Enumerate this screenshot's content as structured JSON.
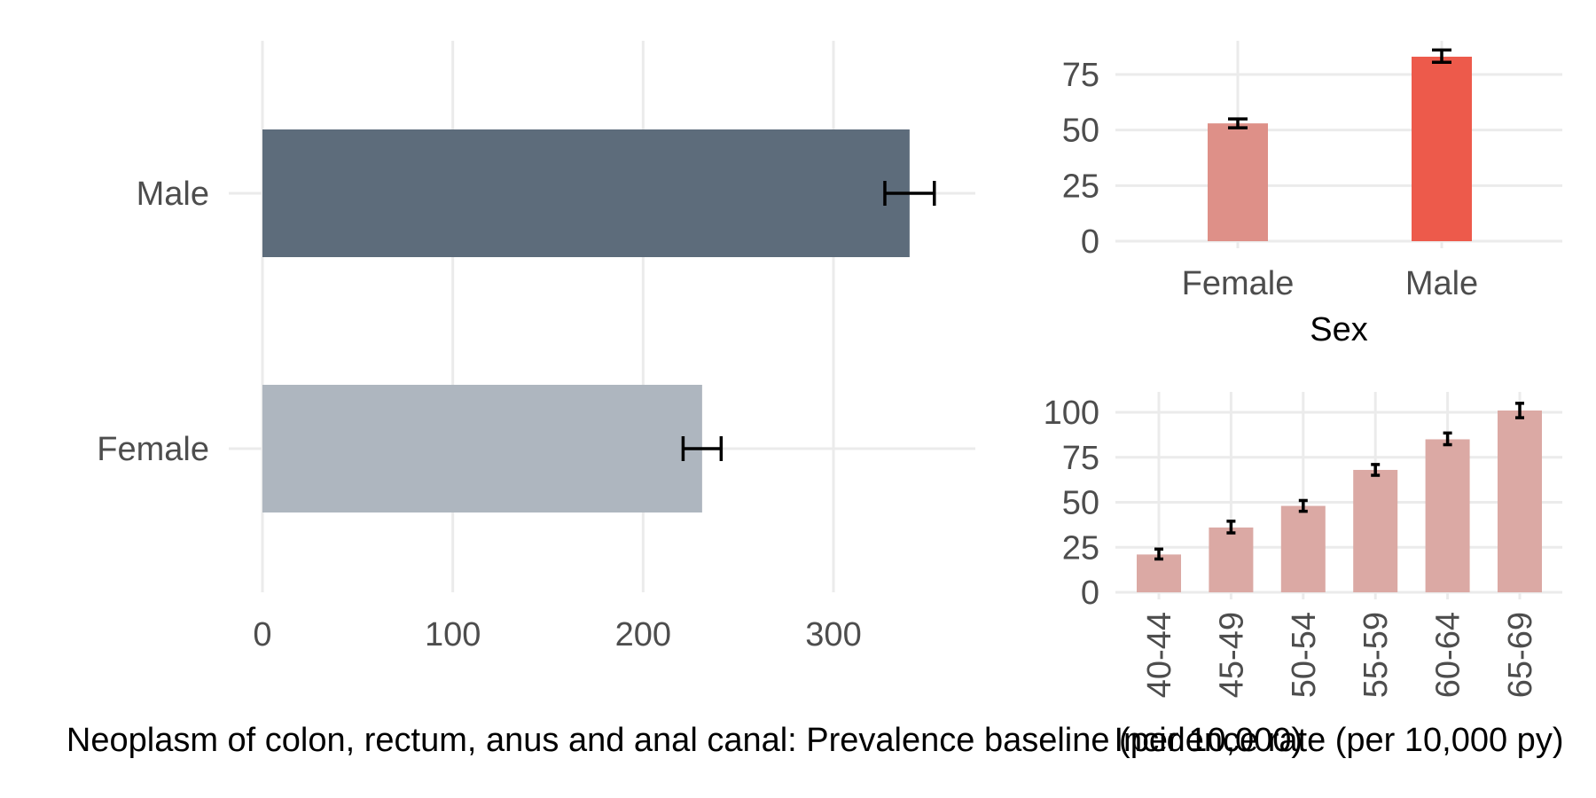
{
  "chart_data": [
    {
      "type": "bar",
      "orientation": "horizontal",
      "categories": [
        "Male",
        "Female"
      ],
      "values": [
        340,
        231
      ],
      "error_low": [
        327,
        221
      ],
      "error_high": [
        353,
        241
      ],
      "colors": [
        "#5d6c7b",
        "#aeb6bf"
      ],
      "xlabel": "Neoplasm of colon, rectum, anus and anal canal: Prevalence baseline (per 10,000)",
      "ylabel": "",
      "xlim": [
        0,
        370
      ],
      "xticks": [
        0,
        100,
        200,
        300
      ],
      "grid": true
    },
    {
      "type": "bar",
      "orientation": "vertical",
      "categories": [
        "Female",
        "Male"
      ],
      "values": [
        53,
        83
      ],
      "error_low": [
        51,
        80.5
      ],
      "error_high": [
        55,
        86
      ],
      "colors": [
        "#de9088",
        "#ed5a4b"
      ],
      "xlabel": "Sex",
      "ylabel": "",
      "ylim": [
        0,
        90
      ],
      "yticks": [
        0,
        25,
        50,
        75
      ],
      "grid": true
    },
    {
      "type": "bar",
      "orientation": "vertical",
      "categories": [
        "40-44",
        "45-49",
        "50-54",
        "55-59",
        "60-64",
        "65-69"
      ],
      "values": [
        21,
        36,
        48,
        68,
        85,
        101
      ],
      "error_low": [
        18.5,
        33,
        45,
        65,
        82,
        97
      ],
      "error_high": [
        24,
        39.5,
        51,
        71,
        88.5,
        105
      ],
      "colors": [
        "#dba9a4"
      ],
      "xlabel": "Incidence rate (per 10,000 py)",
      "ylabel": "",
      "ylim": [
        0,
        110
      ],
      "yticks": [
        0,
        25,
        50,
        75,
        100
      ],
      "grid": true
    }
  ]
}
